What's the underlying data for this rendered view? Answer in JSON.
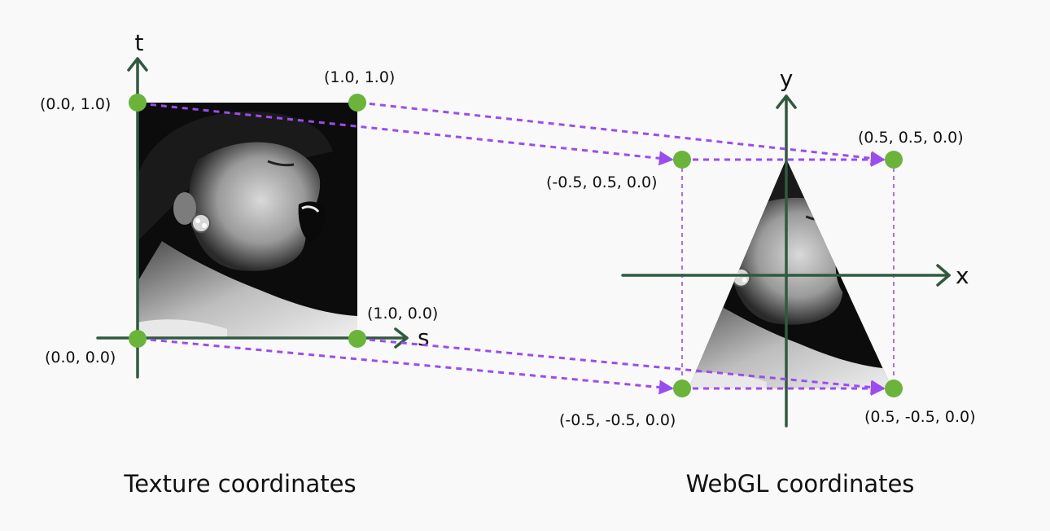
{
  "texture": {
    "caption": "Texture coordinates",
    "axis_s": "s",
    "axis_t": "t",
    "points": [
      {
        "id": "tl",
        "label": "(0.0, 1.0)"
      },
      {
        "id": "tr",
        "label": "(1.0, 1.0)"
      },
      {
        "id": "br",
        "label": "(1.0, 0.0)"
      },
      {
        "id": "bl",
        "label": "(0.0, 0.0)"
      }
    ]
  },
  "webgl": {
    "caption": "WebGL coordinates",
    "axis_x": "x",
    "axis_y": "y",
    "points": [
      {
        "id": "tl",
        "label": "(-0.5, 0.5, 0.0)"
      },
      {
        "id": "tr",
        "label": "(0.5, 0.5, 0.0)"
      },
      {
        "id": "bl",
        "label": "(-0.5, -0.5, 0.0)"
      },
      {
        "id": "br",
        "label": "(0.5, -0.5, 0.0)"
      }
    ]
  },
  "colors": {
    "axis": "#2f5a3f",
    "mapping_arrow": "#9b4cf0",
    "vertex_dot": "#6ab43a"
  }
}
